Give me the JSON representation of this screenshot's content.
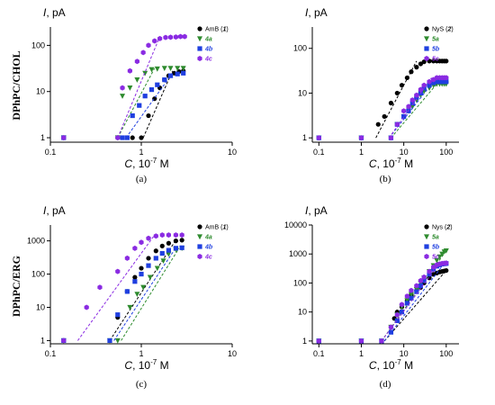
{
  "row_labels": [
    "DPhPC/CHOL",
    "DPhPC/ERG"
  ],
  "colors": {
    "black": "#000000",
    "green": "#2e8b2e",
    "blue": "#1f3fe0",
    "purple": "#8a2be2"
  },
  "chart_data": [
    {
      "type": "scatter",
      "panel_label": "(a)",
      "ylabel_sym": "I",
      "ylabel_unit": ", pA",
      "xlabel_sym": "C",
      "xlabel_unit": ", 10",
      "xlabel_exp": "-7",
      "xlabel_tail": " M",
      "xscale": "log",
      "yscale": "log",
      "xlim": [
        0.1,
        10
      ],
      "ylim": [
        0.8,
        250
      ],
      "xticks": [
        {
          "v": 0.1,
          "l": "0.1"
        },
        {
          "v": 1,
          "l": "1"
        },
        {
          "v": 10,
          "l": "10"
        }
      ],
      "yticks": [
        {
          "v": 1,
          "l": "1"
        },
        {
          "v": 10,
          "l": "10"
        },
        {
          "v": 100,
          "l": "100"
        }
      ],
      "legend_position": "top-right",
      "series": [
        {
          "name": "AmB (",
          "tag": "1",
          "tail": ")",
          "color": "#000000",
          "marker": "circle",
          "x": [
            0.14,
            0.55,
            0.8,
            1.0,
            1.2,
            1.4,
            1.6,
            1.8,
            2.0,
            2.3,
            2.6,
            2.9
          ],
          "y": [
            1,
            1,
            1,
            1,
            3,
            7,
            12,
            18,
            22,
            25,
            27,
            28
          ],
          "fit": [
            [
              1.05,
              1
            ],
            [
              2.2,
              28
            ]
          ]
        },
        {
          "name": "",
          "tag": "4a",
          "tail": "",
          "color": "#2e8b2e",
          "marker": "triangle",
          "x": [
            0.14,
            0.55,
            0.62,
            0.75,
            0.9,
            1.1,
            1.3,
            1.5,
            1.8,
            2.1,
            2.5,
            2.9
          ],
          "y": [
            1,
            1,
            8,
            12,
            18,
            25,
            30,
            31,
            32,
            32,
            32,
            32
          ],
          "fit": [
            [
              0.55,
              1
            ],
            [
              1.4,
              32
            ]
          ]
        },
        {
          "name": "",
          "tag": "4b",
          "tail": "",
          "color": "#1f3fe0",
          "marker": "square",
          "x": [
            0.14,
            0.62,
            0.7,
            0.8,
            0.95,
            1.1,
            1.3,
            1.5,
            1.8,
            2.1,
            2.5,
            2.9
          ],
          "y": [
            1,
            1,
            1,
            3,
            5,
            8,
            11,
            14,
            18,
            22,
            24,
            25
          ],
          "fit": [
            [
              0.68,
              1
            ],
            [
              2.2,
              25
            ]
          ]
        },
        {
          "name": "",
          "tag": "4c",
          "tail": "",
          "color": "#8a2be2",
          "marker": "hexagon",
          "x": [
            0.14,
            0.55,
            0.62,
            0.75,
            0.9,
            1.05,
            1.2,
            1.4,
            1.6,
            1.85,
            2.1,
            2.4,
            2.7,
            3.0
          ],
          "y": [
            1,
            1,
            12,
            28,
            45,
            70,
            100,
            125,
            140,
            148,
            150,
            152,
            155,
            155
          ],
          "fit": [
            [
              0.55,
              1
            ],
            [
              1.6,
              155
            ]
          ]
        }
      ]
    },
    {
      "type": "scatter",
      "panel_label": "(b)",
      "ylabel_sym": "I",
      "ylabel_unit": ", pA",
      "xlabel_sym": "C",
      "xlabel_unit": ", 10",
      "xlabel_exp": "-7",
      "xlabel_tail": " M",
      "xscale": "log",
      "yscale": "log",
      "xlim": [
        0.07,
        200
      ],
      "ylim": [
        0.8,
        300
      ],
      "xticks": [
        {
          "v": 0.1,
          "l": "0.1"
        },
        {
          "v": 1,
          "l": "1"
        },
        {
          "v": 10,
          "l": "10"
        },
        {
          "v": 100,
          "l": "100"
        }
      ],
      "yticks": [
        {
          "v": 1,
          "l": "1"
        },
        {
          "v": 10,
          "l": "10"
        },
        {
          "v": 100,
          "l": "100"
        }
      ],
      "legend_position": "top-right",
      "series": [
        {
          "name": "NyS (",
          "tag": "2",
          "tail": ")",
          "color": "#000000",
          "marker": "circle",
          "x": [
            0.1,
            1,
            2.5,
            3.5,
            5,
            7,
            9,
            12,
            15,
            20,
            25,
            30,
            40,
            50,
            60,
            70,
            80,
            90,
            100
          ],
          "y": [
            1,
            1,
            2,
            3,
            6,
            10,
            15,
            22,
            30,
            38,
            45,
            50,
            52,
            52,
            52,
            52,
            52,
            52,
            52
          ],
          "fit": [
            [
              2.2,
              1
            ],
            [
              20,
              52
            ]
          ]
        },
        {
          "name": "",
          "tag": "5a",
          "tail": "",
          "color": "#2e8b2e",
          "marker": "triangle",
          "x": [
            0.1,
            1,
            5,
            7,
            10,
            13,
            16,
            20,
            25,
            30,
            40,
            50,
            60,
            70,
            80,
            90,
            100
          ],
          "y": [
            1,
            1,
            1,
            2,
            3,
            4,
            5,
            7,
            9,
            11,
            13,
            15,
            16,
            16,
            16,
            16,
            16
          ],
          "fit": [
            [
              5,
              1
            ],
            [
              60,
              16
            ]
          ]
        },
        {
          "name": "",
          "tag": "5b",
          "tail": "",
          "color": "#1f3fe0",
          "marker": "square",
          "x": [
            0.1,
            1,
            5,
            7,
            10,
            13,
            16,
            20,
            25,
            30,
            40,
            50,
            60,
            70,
            80,
            90,
            100
          ],
          "y": [
            1,
            1,
            1,
            2,
            3,
            4,
            6,
            8,
            10,
            13,
            15,
            17,
            18,
            18,
            18,
            18,
            18
          ],
          "fit": [
            [
              4.5,
              1
            ],
            [
              50,
              18
            ]
          ]
        },
        {
          "name": "",
          "tag": "5c",
          "tail": "",
          "color": "#8a2be2",
          "marker": "hexagon",
          "x": [
            0.1,
            1,
            5,
            7,
            10,
            13,
            16,
            20,
            25,
            30,
            40,
            50,
            60,
            70,
            80,
            90,
            100
          ],
          "y": [
            1,
            1,
            1,
            2,
            4,
            5,
            7,
            9,
            12,
            15,
            18,
            20,
            22,
            22,
            22,
            22,
            22
          ],
          "fit": [
            [
              4.5,
              1
            ],
            [
              45,
              22
            ]
          ]
        }
      ]
    },
    {
      "type": "scatter",
      "panel_label": "(c)",
      "ylabel_sym": "I",
      "ylabel_unit": ", pA",
      "xlabel_sym": "C",
      "xlabel_unit": ", 10",
      "xlabel_exp": "-7",
      "xlabel_tail": " M",
      "xscale": "log",
      "yscale": "log",
      "xlim": [
        0.1,
        10
      ],
      "ylim": [
        0.8,
        3000
      ],
      "xticks": [
        {
          "v": 0.1,
          "l": "0.1"
        },
        {
          "v": 1,
          "l": "1"
        },
        {
          "v": 10,
          "l": "10"
        }
      ],
      "yticks": [
        {
          "v": 1,
          "l": "1"
        },
        {
          "v": 10,
          "l": "10"
        },
        {
          "v": 100,
          "l": "100"
        },
        {
          "v": 1000,
          "l": "1000"
        }
      ],
      "legend_position": "top-right",
      "series": [
        {
          "name": "AmB (",
          "tag": "1",
          "tail": ")",
          "color": "#000000",
          "marker": "circle",
          "x": [
            0.14,
            0.45,
            0.55,
            0.7,
            0.85,
            1.0,
            1.2,
            1.45,
            1.7,
            2.0,
            2.4,
            2.8
          ],
          "y": [
            1,
            1,
            5,
            30,
            80,
            150,
            300,
            500,
            700,
            850,
            1000,
            1050
          ],
          "fit": [
            [
              0.45,
              1
            ],
            [
              2.4,
              1050
            ]
          ]
        },
        {
          "name": "",
          "tag": "4a",
          "tail": "",
          "color": "#2e8b2e",
          "marker": "triangle",
          "x": [
            0.14,
            0.45,
            0.55,
            0.75,
            0.9,
            1.05,
            1.25,
            1.5,
            1.75,
            2.0,
            2.4,
            2.8
          ],
          "y": [
            1,
            1,
            1,
            10,
            25,
            40,
            80,
            150,
            250,
            400,
            550,
            600
          ],
          "fit": [
            [
              0.6,
              1
            ],
            [
              2.6,
              600
            ]
          ]
        },
        {
          "name": "",
          "tag": "4b",
          "tail": "",
          "color": "#1f3fe0",
          "marker": "square",
          "x": [
            0.14,
            0.45,
            0.55,
            0.7,
            0.85,
            1.0,
            1.2,
            1.45,
            1.7,
            2.0,
            2.4,
            2.8
          ],
          "y": [
            1,
            1,
            6,
            30,
            60,
            100,
            180,
            300,
            420,
            520,
            600,
            620
          ],
          "fit": [
            [
              0.5,
              1
            ],
            [
              2.4,
              620
            ]
          ]
        },
        {
          "name": "",
          "tag": "4c",
          "tail": "",
          "color": "#8a2be2",
          "marker": "hexagon",
          "x": [
            0.14,
            0.25,
            0.35,
            0.55,
            0.7,
            0.85,
            1.0,
            1.2,
            1.45,
            1.7,
            2.0,
            2.4,
            2.8
          ],
          "y": [
            1,
            10,
            40,
            120,
            300,
            600,
            900,
            1200,
            1400,
            1500,
            1500,
            1500,
            1500
          ],
          "fit": [
            [
              0.2,
              1
            ],
            [
              1.4,
              1500
            ]
          ]
        }
      ]
    },
    {
      "type": "scatter",
      "panel_label": "(d)",
      "ylabel_sym": "I",
      "ylabel_unit": ", pA",
      "xlabel_sym": "C",
      "xlabel_unit": ", 10",
      "xlabel_exp": "-7",
      "xlabel_tail": " M",
      "xscale": "log",
      "yscale": "log",
      "xlim": [
        0.07,
        200
      ],
      "ylim": [
        0.8,
        10000
      ],
      "xticks": [
        {
          "v": 0.1,
          "l": "0.1"
        },
        {
          "v": 1,
          "l": "1"
        },
        {
          "v": 10,
          "l": "10"
        },
        {
          "v": 100,
          "l": "100"
        }
      ],
      "yticks": [
        {
          "v": 1,
          "l": "1"
        },
        {
          "v": 10,
          "l": "10"
        },
        {
          "v": 100,
          "l": "100"
        },
        {
          "v": 1000,
          "l": "1000"
        },
        {
          "v": 10000,
          "l": "10000"
        }
      ],
      "legend_position": "top-right",
      "series": [
        {
          "name": "Nys (",
          "tag": "2",
          "tail": ")",
          "color": "#000000",
          "marker": "circle",
          "x": [
            0.1,
            1,
            3,
            5,
            6,
            7,
            9,
            12,
            15,
            20,
            25,
            30,
            40,
            50,
            60,
            70,
            80,
            90,
            100
          ],
          "y": [
            1,
            1,
            1,
            3,
            6,
            10,
            15,
            25,
            40,
            55,
            70,
            100,
            150,
            200,
            220,
            240,
            250,
            260,
            270
          ],
          "fit": [
            [
              3.5,
              1
            ],
            [
              100,
              270
            ]
          ]
        },
        {
          "name": "",
          "tag": "5a",
          "tail": "",
          "color": "#2e8b2e",
          "marker": "triangle",
          "x": [
            0.1,
            1,
            3,
            5,
            7,
            9,
            12,
            15,
            20,
            25,
            30,
            40,
            50,
            60,
            70,
            80,
            90,
            100
          ],
          "y": [
            1,
            1,
            1,
            3,
            8,
            15,
            25,
            40,
            60,
            100,
            150,
            250,
            400,
            600,
            800,
            1000,
            1200,
            1300
          ],
          "fit": [
            [
              3,
              1
            ],
            [
              100,
              1300
            ]
          ]
        },
        {
          "name": "",
          "tag": "5b",
          "tail": "",
          "color": "#1f3fe0",
          "marker": "square",
          "x": [
            0.1,
            1,
            3,
            5,
            7,
            9,
            12,
            15,
            20,
            25,
            30,
            40,
            50,
            60,
            70,
            80,
            90,
            100
          ],
          "y": [
            1,
            1,
            1,
            2,
            5,
            10,
            20,
            30,
            50,
            80,
            120,
            200,
            300,
            380,
            420,
            450,
            460,
            470
          ],
          "fit": [
            [
              3.5,
              1
            ],
            [
              90,
              470
            ]
          ]
        },
        {
          "name": "",
          "tag": "5c",
          "tail": "",
          "color": "#8a2be2",
          "marker": "hexagon",
          "x": [
            0.1,
            1,
            3,
            5,
            7,
            9,
            12,
            15,
            20,
            25,
            30,
            40,
            50,
            60,
            70,
            80,
            90,
            100
          ],
          "y": [
            1,
            1,
            1,
            3,
            8,
            18,
            35,
            55,
            80,
            120,
            160,
            250,
            350,
            420,
            450,
            470,
            480,
            490
          ],
          "fit": [
            [
              3,
              1
            ],
            [
              70,
              490
            ]
          ]
        }
      ]
    }
  ]
}
